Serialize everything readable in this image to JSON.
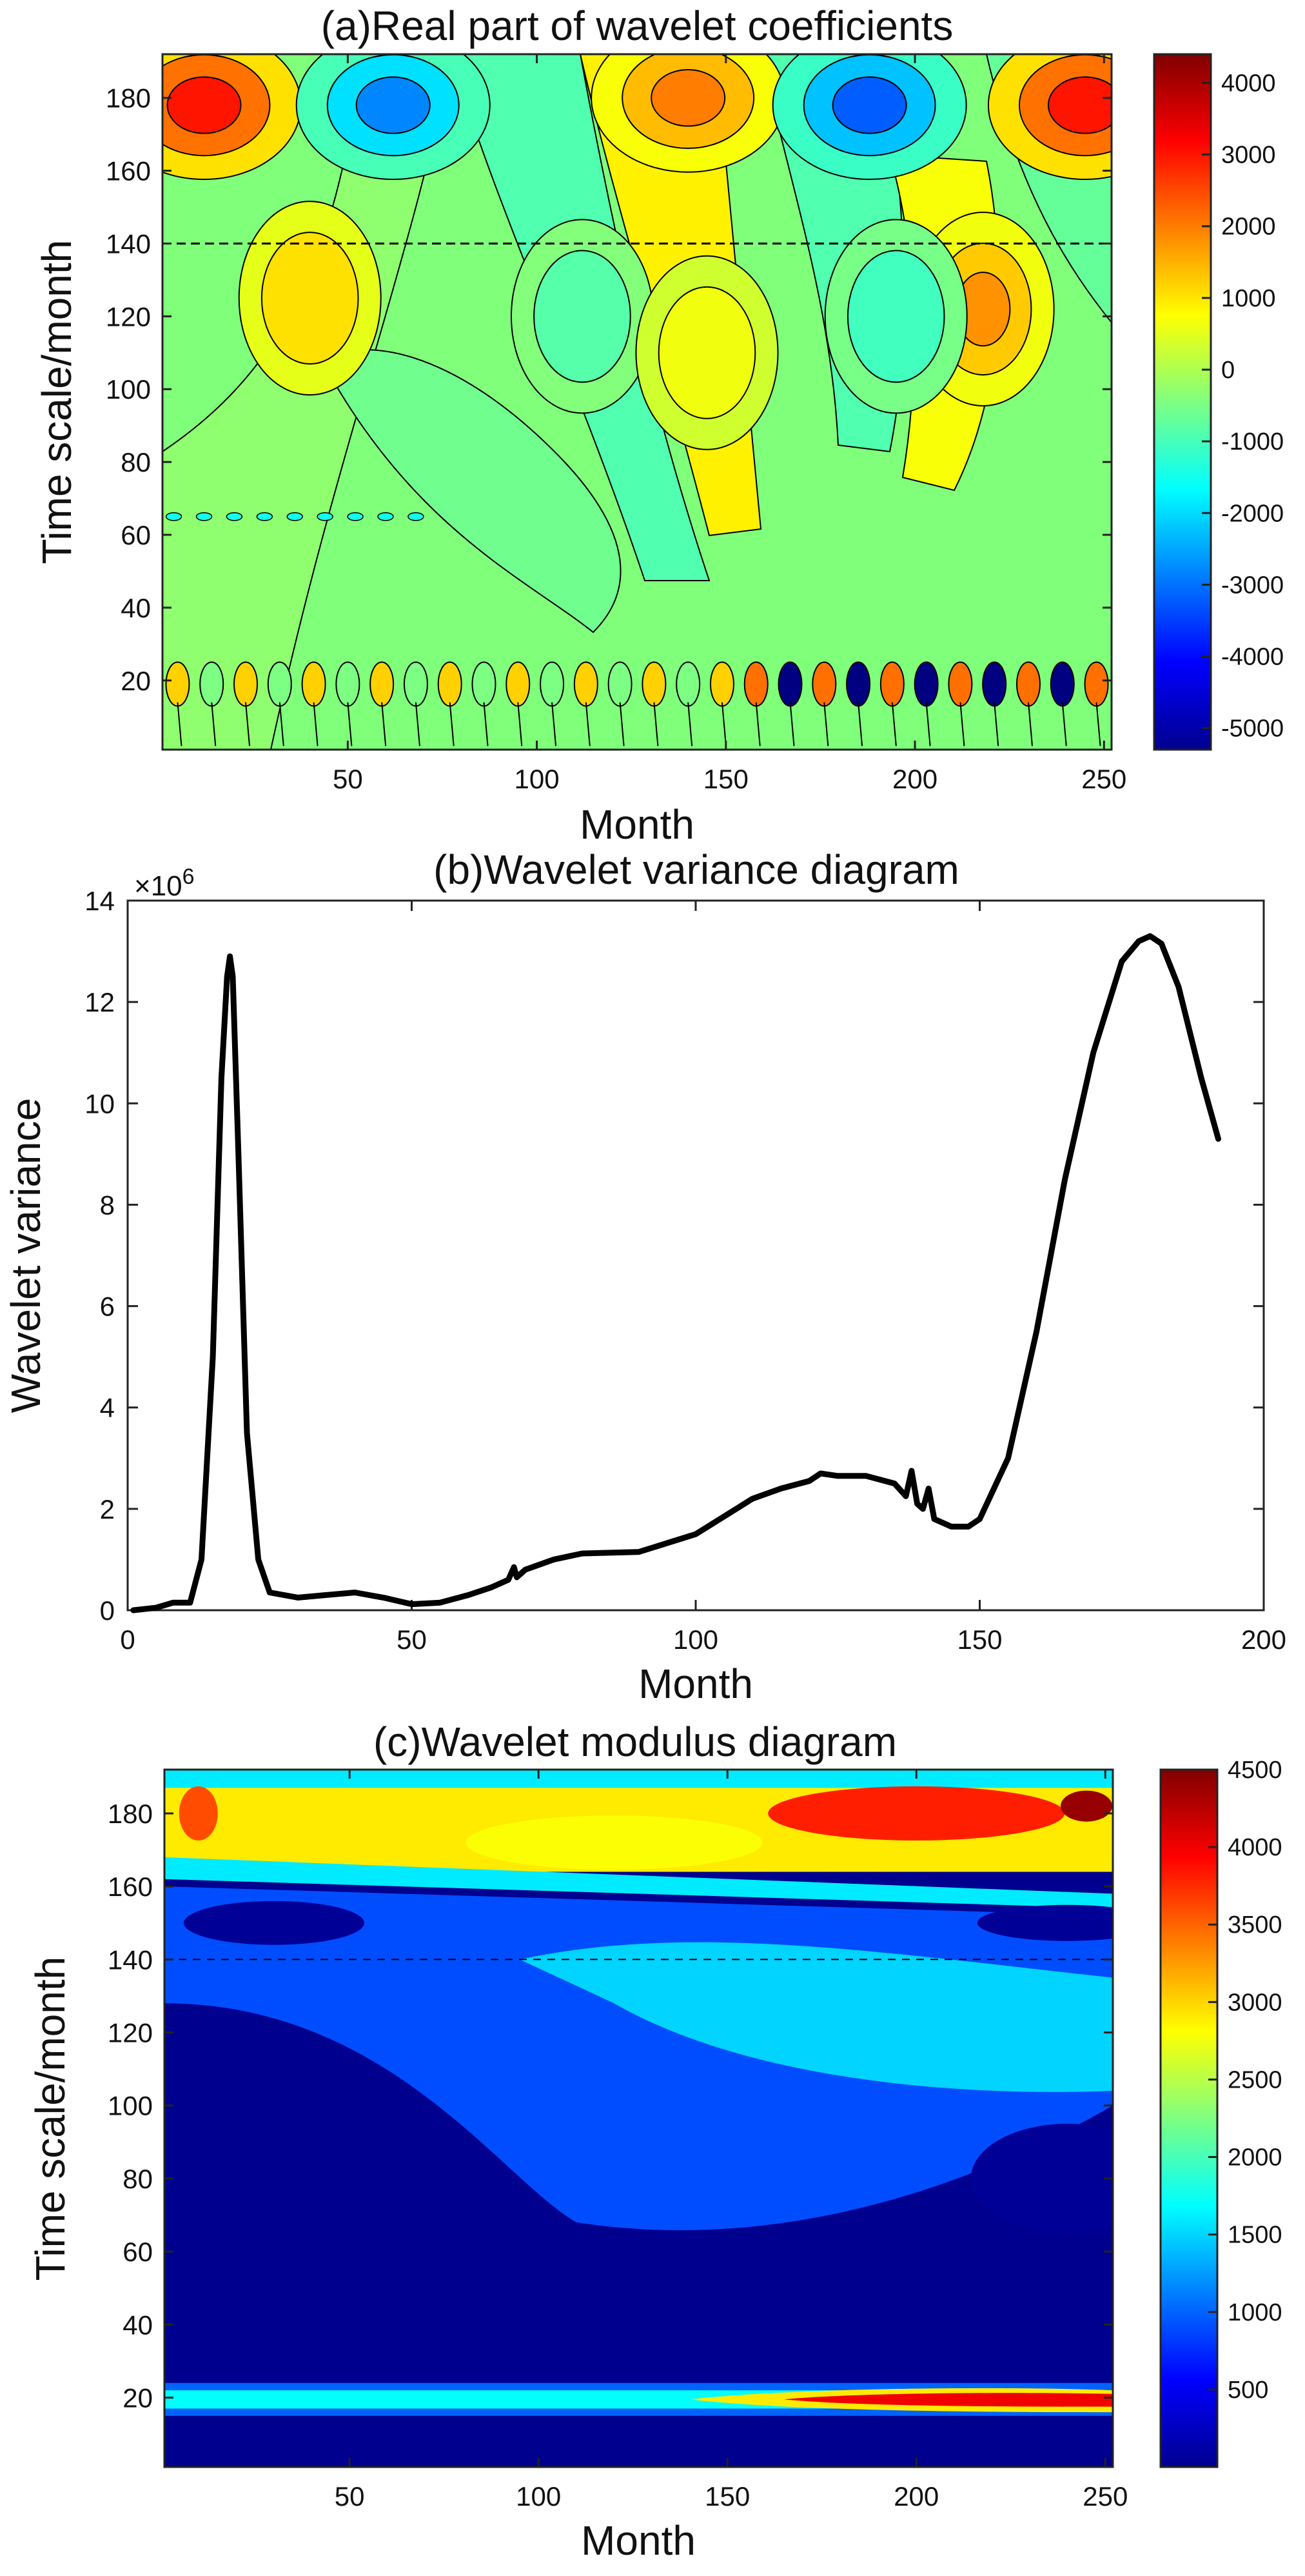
{
  "chart_data": [
    {
      "type": "heatmap",
      "title": "(a)Real part of wavelet coefficients",
      "xlabel": "Month",
      "ylabel": "Time scale/month",
      "xlim": [
        1,
        252
      ],
      "ylim": [
        1,
        192
      ],
      "xticks": [
        50,
        100,
        150,
        200,
        250
      ],
      "yticks": [
        20,
        40,
        60,
        80,
        100,
        120,
        140,
        160,
        180
      ],
      "colorbar": {
        "min": -5300,
        "max": 4400,
        "ticks": [
          4000,
          3000,
          2000,
          1000,
          0,
          -1000,
          -2000,
          -3000,
          -4000,
          -5000
        ]
      },
      "features": [
        {
          "x": 12,
          "y": 178,
          "v": 3000
        },
        {
          "x": 245,
          "y": 178,
          "v": 3000
        },
        {
          "x": 140,
          "y": 180,
          "v": 2000
        },
        {
          "x": 62,
          "y": 178,
          "v": -2800
        },
        {
          "x": 188,
          "y": 178,
          "v": -3200
        },
        {
          "x": 218,
          "y": 122,
          "v": 1800
        },
        {
          "x": 195,
          "y": 120,
          "v": -1500
        },
        {
          "x": 112,
          "y": 120,
          "v": -1200
        },
        {
          "x": 40,
          "y": 125,
          "v": 1500
        },
        {
          "x": 145,
          "y": 110,
          "v": 900
        }
      ]
    },
    {
      "type": "line",
      "title": "(b)Wavelet variance diagram",
      "xlabel": "Month",
      "ylabel": "Wavelet variance",
      "exponent_label": "×10",
      "exponent_power": "6",
      "xlim": [
        0,
        200
      ],
      "ylim": [
        0,
        14
      ],
      "xticks": [
        0,
        50,
        100,
        150,
        200
      ],
      "yticks": [
        0,
        2,
        4,
        6,
        8,
        10,
        12,
        14
      ],
      "series": [
        {
          "name": "Wavelet variance",
          "x": [
            1,
            5,
            8,
            11,
            13,
            15,
            16.5,
            17.5,
            18,
            18.5,
            19.5,
            21,
            23,
            25,
            30,
            35,
            40,
            45,
            50,
            55,
            60,
            64,
            67,
            68,
            68.5,
            70,
            75,
            80,
            90,
            100,
            110,
            115,
            120,
            122,
            125,
            130,
            135,
            137,
            138,
            139,
            140,
            141,
            142,
            145,
            148,
            150,
            155,
            160,
            165,
            170,
            175,
            178,
            180,
            182,
            185,
            189,
            192
          ],
          "values": [
            0.0,
            0.05,
            0.15,
            0.15,
            1.0,
            5.0,
            10.5,
            12.5,
            12.9,
            12.5,
            9.0,
            3.5,
            1.0,
            0.35,
            0.25,
            0.3,
            0.35,
            0.25,
            0.12,
            0.15,
            0.3,
            0.45,
            0.6,
            0.85,
            0.65,
            0.8,
            1.0,
            1.12,
            1.15,
            1.5,
            2.2,
            2.4,
            2.55,
            2.7,
            2.65,
            2.65,
            2.5,
            2.25,
            2.75,
            2.1,
            2.0,
            2.4,
            1.8,
            1.65,
            1.65,
            1.8,
            3.0,
            5.5,
            8.5,
            11.0,
            12.8,
            13.2,
            13.3,
            13.15,
            12.3,
            10.5,
            9.3
          ]
        }
      ]
    },
    {
      "type": "heatmap",
      "title": "(c)Wavelet modulus diagram",
      "xlabel": "Month",
      "ylabel": "Time scale/month",
      "xlim": [
        1,
        252
      ],
      "ylim": [
        1,
        192
      ],
      "xticks": [
        50,
        100,
        150,
        200,
        250
      ],
      "yticks": [
        20,
        40,
        60,
        80,
        100,
        120,
        140,
        160,
        180
      ],
      "colorbar": {
        "min": 0,
        "max": 4500,
        "ticks": [
          4500,
          4000,
          3500,
          3000,
          2500,
          2000,
          1500,
          1000,
          500
        ]
      },
      "features": [
        {
          "x": 200,
          "y": 180,
          "v": 3800
        },
        {
          "x": 10,
          "y": 180,
          "v": 3600
        },
        {
          "x": 195,
          "y": 19,
          "v": 4300
        },
        {
          "x": 60,
          "y": 19,
          "v": 1700
        },
        {
          "x": 60,
          "y": 80,
          "v": 100
        },
        {
          "x": 160,
          "y": 110,
          "v": 900
        },
        {
          "x": 120,
          "y": 172,
          "v": 2800
        }
      ]
    }
  ]
}
